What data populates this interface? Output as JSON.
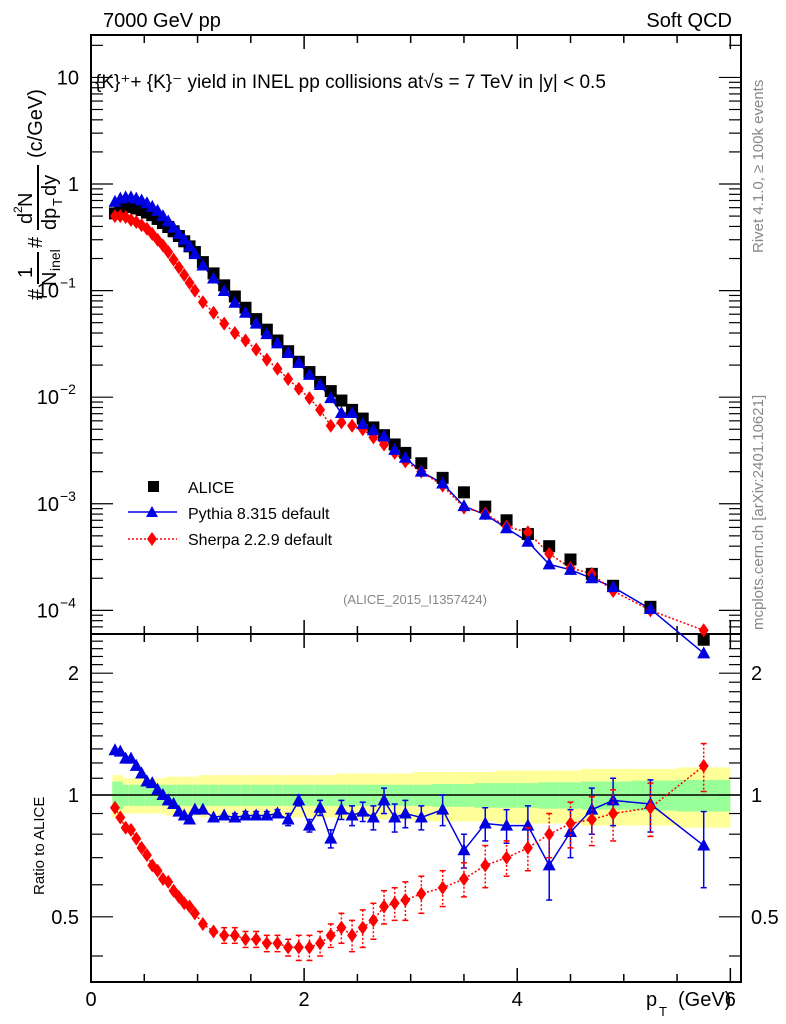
{
  "header": {
    "left": "7000 GeV pp",
    "right": "Soft QCD"
  },
  "side_labels": {
    "top": "Rivet 4.1.0, ≥ 100k events",
    "bottom": "mcplots.cern.ch [arXiv:2401.10621]"
  },
  "plot_title": "{K}⁺+ {K}⁻ yield in INEL pp collisions at√s =  7 TeV in |y| < 0.5",
  "analysis_id": "(ALICE_2015_I1357424)",
  "legend": [
    {
      "name": "ALICE",
      "color": "#000000",
      "marker": "square"
    },
    {
      "name": "Pythia 8.315 default",
      "color": "#0000e0",
      "marker": "triangle"
    },
    {
      "name": "Sherpa 2.2.9 default",
      "color": "#ff0000",
      "marker": "diamond"
    }
  ],
  "chart_data": [
    {
      "type": "scatter",
      "title": "{K}+ + {K}- yield in INEL pp collisions at sqrt(s) = 7 TeV in |y| < 0.5",
      "xlabel": "p_T (GeV)",
      "ylabel": "1/N_inel d²N/dp_T dy (c/GeV)",
      "xlim": [
        0,
        6.1
      ],
      "ylim": [
        6e-05,
        25
      ],
      "yscale": "log",
      "xticks": [
        "0",
        "2",
        "4",
        "6"
      ],
      "yticks": [
        "10^-4",
        "10^-3",
        "10^-2",
        "10^-1",
        "1",
        "10"
      ],
      "legend_position": "lower-left",
      "x": [
        0.225,
        0.275,
        0.325,
        0.375,
        0.425,
        0.475,
        0.525,
        0.575,
        0.625,
        0.675,
        0.725,
        0.775,
        0.825,
        0.875,
        0.925,
        0.975,
        1.05,
        1.15,
        1.25,
        1.35,
        1.45,
        1.55,
        1.65,
        1.75,
        1.85,
        1.95,
        2.05,
        2.15,
        2.25,
        2.35,
        2.45,
        2.55,
        2.65,
        2.75,
        2.85,
        2.95,
        3.1,
        3.3,
        3.5,
        3.7,
        3.9,
        4.1,
        4.3,
        4.5,
        4.7,
        4.9,
        5.25,
        5.75
      ],
      "series": [
        {
          "name": "ALICE",
          "values": [
            0.53,
            0.58,
            0.61,
            0.61,
            0.59,
            0.57,
            0.54,
            0.51,
            0.47,
            0.43,
            0.395,
            0.36,
            0.325,
            0.29,
            0.26,
            0.23,
            0.185,
            0.145,
            0.112,
            0.088,
            0.069,
            0.054,
            0.043,
            0.034,
            0.027,
            0.0215,
            0.0172,
            0.0139,
            0.0114,
            0.0093,
            0.0076,
            0.0063,
            0.0052,
            0.0044,
            0.0036,
            0.003,
            0.0024,
            0.00175,
            0.00128,
            0.00094,
            0.0007,
            0.00052,
            0.0004,
            0.0003,
            0.00022,
            0.00017,
            0.000108,
            5.3e-05
          ]
        },
        {
          "name": "Pythia 8.315 default",
          "values": [
            0.68,
            0.73,
            0.75,
            0.75,
            0.73,
            0.7,
            0.66,
            0.61,
            0.56,
            0.5,
            0.445,
            0.39,
            0.34,
            0.3,
            0.26,
            0.22,
            0.172,
            0.13,
            0.099,
            0.077,
            0.062,
            0.049,
            0.039,
            0.032,
            0.026,
            0.021,
            0.0162,
            0.013,
            0.0098,
            0.0071,
            0.0071,
            0.0056,
            0.0049,
            0.0043,
            0.0032,
            0.0027,
            0.002,
            0.00155,
            0.00095,
            0.00079,
            0.00059,
            0.00044,
            0.00027,
            0.00024,
            0.0002,
            0.000165,
            0.000103,
            3.95e-05
          ]
        },
        {
          "name": "Sherpa 2.2.9 default",
          "values": [
            0.5,
            0.5,
            0.49,
            0.46,
            0.44,
            0.41,
            0.38,
            0.34,
            0.3,
            0.265,
            0.23,
            0.195,
            0.165,
            0.14,
            0.118,
            0.1,
            0.078,
            0.062,
            0.049,
            0.04,
            0.034,
            0.028,
            0.0225,
            0.0185,
            0.0148,
            0.012,
            0.0098,
            0.0076,
            0.0054,
            0.0058,
            0.0054,
            0.005,
            0.0042,
            0.0036,
            0.003,
            0.0025,
            0.002,
            0.00148,
            0.00092,
            0.00081,
            0.00061,
            0.00054,
            0.00034,
            0.00025,
            0.00022,
            0.000152,
            0.0001,
            6.5e-05
          ]
        }
      ]
    },
    {
      "type": "scatter",
      "ylabel": "Ratio to ALICE",
      "xlabel": "p_T (GeV)",
      "xlim": [
        0,
        6.1
      ],
      "ylim": [
        0.345,
        2.5
      ],
      "yscale": "log",
      "yticks": [
        "0.5",
        "1",
        "2"
      ],
      "x": [
        0.225,
        0.275,
        0.325,
        0.375,
        0.425,
        0.475,
        0.525,
        0.575,
        0.625,
        0.675,
        0.725,
        0.775,
        0.825,
        0.875,
        0.925,
        0.975,
        1.05,
        1.15,
        1.25,
        1.35,
        1.45,
        1.55,
        1.65,
        1.75,
        1.85,
        1.95,
        2.05,
        2.15,
        2.25,
        2.35,
        2.45,
        2.55,
        2.65,
        2.75,
        2.85,
        2.95,
        3.1,
        3.3,
        3.5,
        3.7,
        3.9,
        4.1,
        4.3,
        4.5,
        4.7,
        4.9,
        5.25,
        5.75
      ],
      "band_inner": [
        0.08,
        0.08,
        0.06,
        0.06,
        0.06,
        0.06,
        0.06,
        0.06,
        0.06,
        0.06,
        0.06,
        0.06,
        0.06,
        0.06,
        0.06,
        0.06,
        0.06,
        0.06,
        0.06,
        0.06,
        0.06,
        0.06,
        0.06,
        0.06,
        0.06,
        0.06,
        0.06,
        0.06,
        0.06,
        0.06,
        0.06,
        0.06,
        0.06,
        0.06,
        0.06,
        0.06,
        0.06,
        0.065,
        0.065,
        0.07,
        0.07,
        0.07,
        0.075,
        0.075,
        0.08,
        0.08,
        0.085,
        0.09
      ],
      "band_outer": [
        0.12,
        0.12,
        0.1,
        0.1,
        0.1,
        0.1,
        0.1,
        0.1,
        0.1,
        0.1,
        0.11,
        0.11,
        0.11,
        0.11,
        0.11,
        0.11,
        0.12,
        0.12,
        0.12,
        0.12,
        0.12,
        0.12,
        0.12,
        0.12,
        0.12,
        0.12,
        0.12,
        0.12,
        0.12,
        0.13,
        0.13,
        0.13,
        0.13,
        0.13,
        0.13,
        0.13,
        0.14,
        0.14,
        0.14,
        0.14,
        0.15,
        0.15,
        0.15,
        0.15,
        0.16,
        0.16,
        0.16,
        0.17
      ],
      "series": [
        {
          "name": "Pythia 8.315 default",
          "values": [
            1.29,
            1.28,
            1.23,
            1.23,
            1.18,
            1.13,
            1.08,
            1.07,
            1.03,
            1.0,
            0.97,
            0.95,
            0.91,
            0.89,
            0.87,
            0.92,
            0.92,
            0.88,
            0.89,
            0.88,
            0.89,
            0.89,
            0.89,
            0.9,
            0.87,
            0.97,
            0.84,
            0.93,
            0.78,
            0.92,
            0.89,
            0.91,
            0.88,
            0.97,
            0.88,
            0.9,
            0.88,
            0.92,
            0.73,
            0.85,
            0.84,
            0.84,
            0.67,
            0.81,
            0.92,
            0.97,
            0.95,
            0.75
          ],
          "errors": [
            0.01,
            0.01,
            0.01,
            0.01,
            0.01,
            0.01,
            0.01,
            0.01,
            0.01,
            0.01,
            0.01,
            0.01,
            0.01,
            0.01,
            0.01,
            0.01,
            0.01,
            0.01,
            0.01,
            0.02,
            0.02,
            0.02,
            0.02,
            0.02,
            0.03,
            0.03,
            0.03,
            0.04,
            0.04,
            0.05,
            0.05,
            0.05,
            0.06,
            0.07,
            0.07,
            0.07,
            0.06,
            0.08,
            0.07,
            0.08,
            0.08,
            0.1,
            0.12,
            0.11,
            0.12,
            0.13,
            0.14,
            0.16
          ]
        },
        {
          "name": "Sherpa 2.2.9 default",
          "values": [
            0.93,
            0.88,
            0.83,
            0.82,
            0.78,
            0.74,
            0.71,
            0.67,
            0.65,
            0.62,
            0.61,
            0.58,
            0.56,
            0.54,
            0.53,
            0.51,
            0.48,
            0.46,
            0.45,
            0.45,
            0.44,
            0.44,
            0.43,
            0.43,
            0.42,
            0.42,
            0.42,
            0.43,
            0.45,
            0.47,
            0.45,
            0.47,
            0.49,
            0.53,
            0.54,
            0.55,
            0.57,
            0.59,
            0.62,
            0.67,
            0.7,
            0.74,
            0.8,
            0.85,
            0.87,
            0.9,
            0.93,
            1.18
          ],
          "errors": [
            0.01,
            0.01,
            0.01,
            0.01,
            0.01,
            0.01,
            0.01,
            0.01,
            0.01,
            0.01,
            0.01,
            0.01,
            0.01,
            0.01,
            0.01,
            0.01,
            0.01,
            0.01,
            0.02,
            0.02,
            0.02,
            0.02,
            0.02,
            0.02,
            0.02,
            0.03,
            0.03,
            0.03,
            0.03,
            0.04,
            0.04,
            0.05,
            0.05,
            0.05,
            0.05,
            0.06,
            0.06,
            0.06,
            0.06,
            0.08,
            0.07,
            0.09,
            0.1,
            0.11,
            0.12,
            0.13,
            0.14,
            0.16
          ]
        }
      ]
    }
  ]
}
